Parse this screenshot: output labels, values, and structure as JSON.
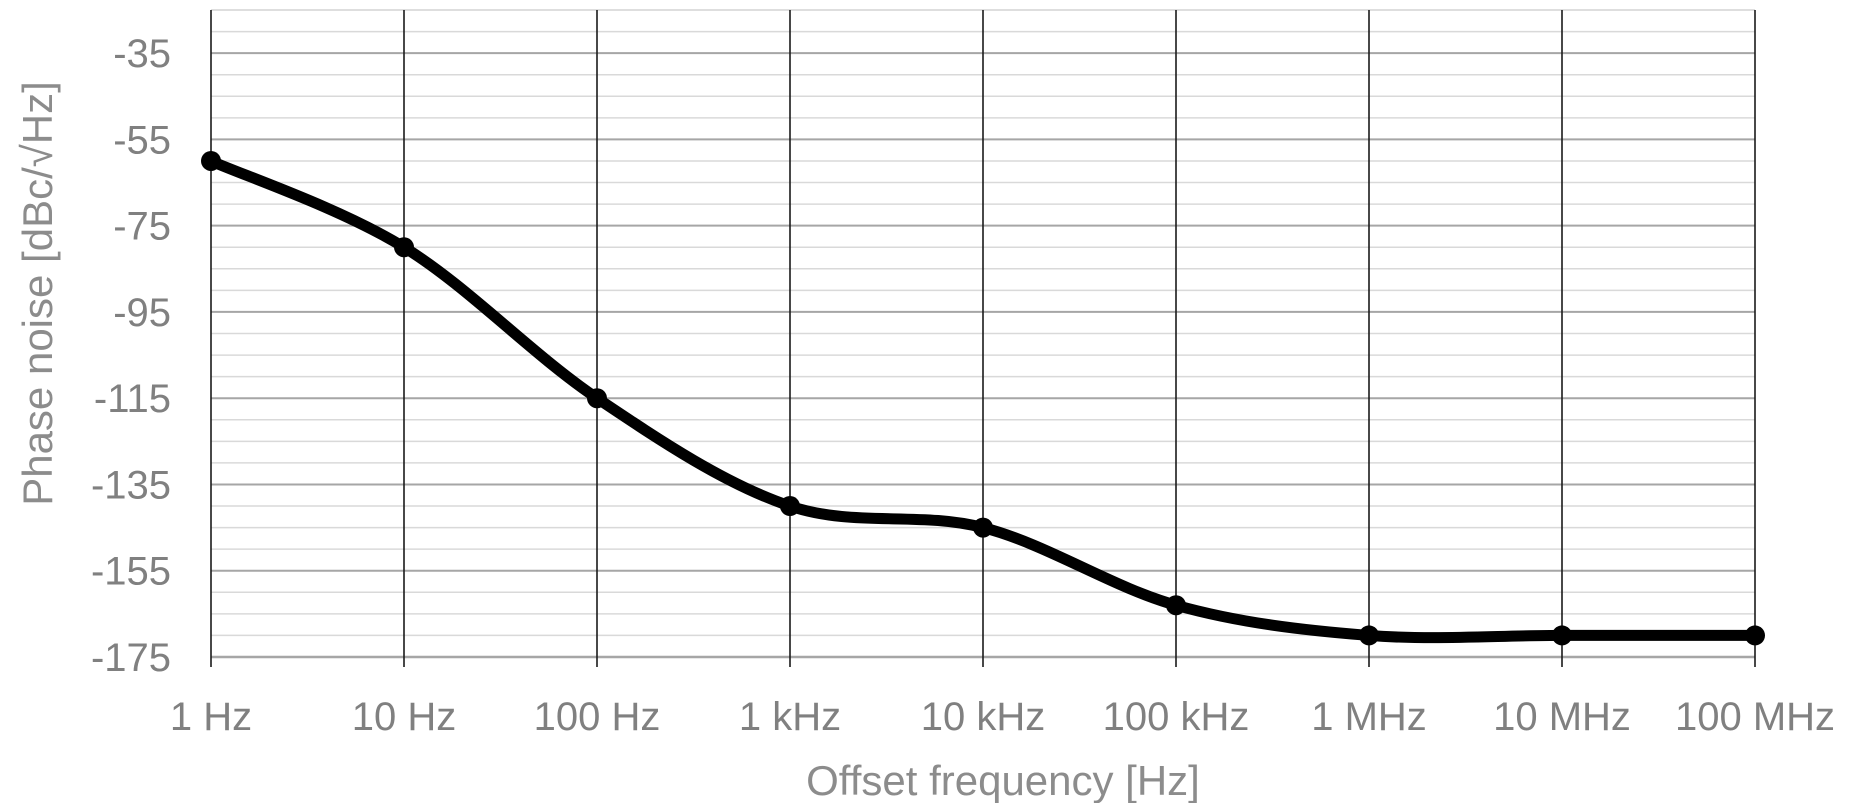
{
  "chart_data": {
    "type": "line",
    "title": "",
    "xlabel": "Offset frequency [Hz]",
    "ylabel": "Phase noise [dBc/√Hz]",
    "x_scale": "log",
    "x_ticks": [
      1,
      10,
      100,
      1000,
      10000,
      100000,
      1000000,
      10000000,
      100000000
    ],
    "x_tick_labels": [
      "1 Hz",
      "10 Hz",
      "100 Hz",
      "1 kHz",
      "10 kHz",
      "100 kHz",
      "1 MHz",
      "10 MHz",
      "100 MHz"
    ],
    "xlim": [
      1,
      100000000
    ],
    "y_ticks": [
      -35,
      -55,
      -75,
      -95,
      -115,
      -135,
      -155,
      -175
    ],
    "y_tick_labels": [
      "-35",
      "-55",
      "-75",
      "-95",
      "-115",
      "-135",
      "-155",
      "-175"
    ],
    "ylim": [
      -175,
      -25
    ],
    "grid": true,
    "minor_grid": true,
    "legend": "none",
    "series": [
      {
        "color": "#000000",
        "smooth": true,
        "x": [
          1,
          10,
          100,
          1000,
          10000,
          100000,
          1000000,
          10000000,
          100000000
        ],
        "y": [
          -60,
          -80,
          -115,
          -140,
          -145,
          -163,
          -170,
          -170,
          -170
        ]
      }
    ]
  }
}
